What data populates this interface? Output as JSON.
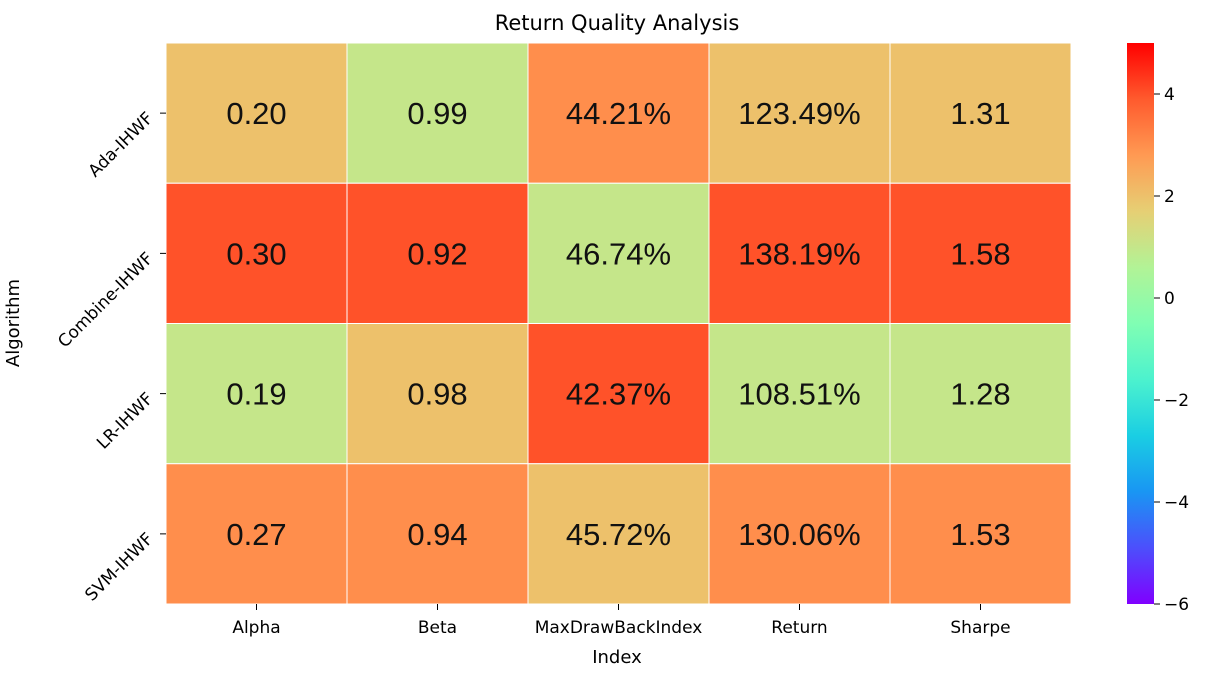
{
  "chart_data": {
    "type": "heatmap",
    "title": "Return Quality Analysis",
    "xlabel": "Index",
    "ylabel": "Algorithm",
    "columns": [
      "Alpha",
      "Beta",
      "MaxDrawBackIndex",
      "Return",
      "Sharpe"
    ],
    "rows": [
      "Ada-IHWF",
      "Combine-IHWF",
      "LR-IHWF",
      "SVM-IHWF"
    ],
    "cell_labels": [
      [
        "0.20",
        "0.99",
        "44.21%",
        "123.49%",
        "1.31"
      ],
      [
        "0.30",
        "0.92",
        "46.74%",
        "138.19%",
        "1.58"
      ],
      [
        "0.19",
        "0.98",
        "42.37%",
        "108.51%",
        "1.28"
      ],
      [
        "0.27",
        "0.94",
        "45.72%",
        "130.06%",
        "1.53"
      ]
    ],
    "color_values": [
      [
        2.0,
        1.0,
        3.0,
        2.0,
        2.0
      ],
      [
        4.0,
        4.0,
        1.0,
        4.0,
        4.0
      ],
      [
        1.0,
        2.0,
        4.0,
        1.0,
        1.0
      ],
      [
        3.0,
        3.0,
        2.0,
        3.0,
        3.0
      ]
    ],
    "colorbar": {
      "colormap": "rainbow",
      "range": [
        -6,
        5
      ],
      "ticks": [
        -6,
        -4,
        -2,
        0,
        2,
        4
      ],
      "tick_labels": [
        "−6",
        "−4",
        "−2",
        "0",
        "2",
        "4"
      ]
    }
  }
}
